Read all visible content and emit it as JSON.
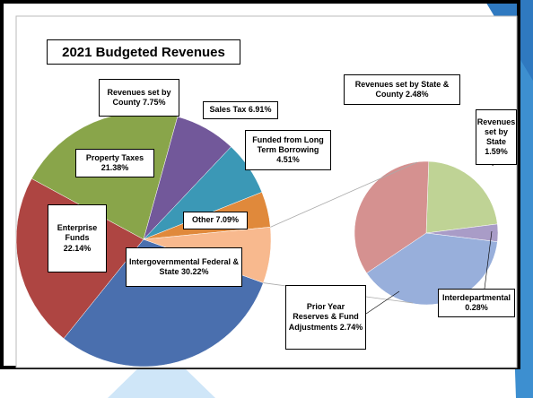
{
  "chart_data": [
    {
      "type": "pie",
      "title": "2021 Budgeted Revenues",
      "categories": [
        "Intergovernmental Federal & State",
        "Enterprise Funds",
        "Property Taxes",
        "Revenues set by County",
        "Sales Tax",
        "Funded from Long Term Borrowing",
        "Other"
      ],
      "values": [
        30.22,
        22.14,
        21.38,
        7.75,
        6.91,
        4.51,
        7.09
      ],
      "value_labels": [
        "30.22%",
        "22.14%",
        "21.38%",
        "7.75%",
        "6.91%",
        "4.51%",
        "7.09%"
      ],
      "colors": [
        "#4a6fae",
        "#ae4542",
        "#89a54a",
        "#72589a",
        "#3b98b6",
        "#e0893b",
        "#f8b98e"
      ]
    },
    {
      "type": "pie",
      "categories": [
        "Revenues set by State",
        "Interdepartmental",
        "Prior Year Reserves & Fund Adjustments",
        "Revenues set by State & County"
      ],
      "values": [
        1.59,
        0.28,
        2.74,
        2.48
      ],
      "value_labels": [
        "1.59%",
        "0.28%",
        "2.74%",
        "2.48%"
      ],
      "colors": [
        "#bfd395",
        "#a99cc7",
        "#98afdb",
        "#d59190"
      ]
    }
  ]
}
